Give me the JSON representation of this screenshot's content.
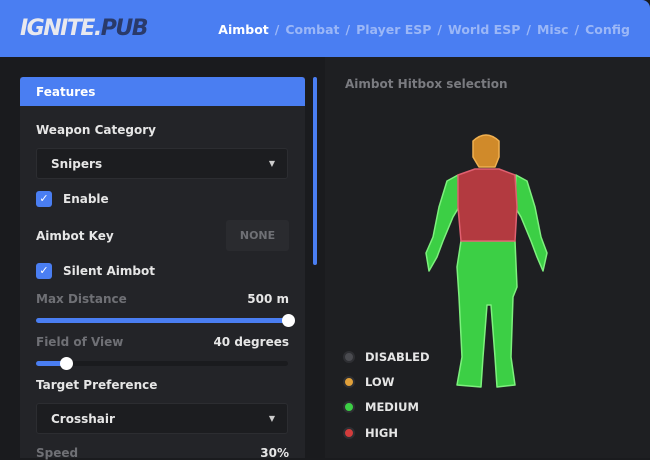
{
  "header": {
    "logo_main": "IGNITE.",
    "logo_accent": "PUB",
    "nav": [
      "Aimbot",
      "Combat",
      "Player ESP",
      "World ESP",
      "Misc",
      "Config"
    ],
    "active": "Aimbot",
    "separator": "/"
  },
  "features": {
    "title": "Features",
    "weapon_category_label": "Weapon Category",
    "weapon_category_value": "Snipers",
    "enable_label": "Enable",
    "enable_checked": true,
    "aimbot_key_label": "Aimbot Key",
    "aimbot_key_value": "NONE",
    "silent_label": "Silent Aimbot",
    "silent_checked": true,
    "max_distance_label": "Max Distance",
    "max_distance_value": "500 m",
    "max_distance_fraction": 1.0,
    "fov_label": "Field of View",
    "fov_value": "40 degrees",
    "fov_fraction": 0.12,
    "target_pref_label": "Target Preference",
    "target_pref_value": "Crosshair",
    "speed_label": "Speed",
    "speed_value": "30%"
  },
  "hitbox": {
    "title": "Aimbot Hitbox selection",
    "regions": {
      "head": "LOW",
      "torso": "HIGH",
      "arms": "MEDIUM",
      "legs": "MEDIUM"
    },
    "legend": [
      {
        "label": "DISABLED",
        "color": "#4a4b50"
      },
      {
        "label": "LOW",
        "color": "#e0a03a"
      },
      {
        "label": "MEDIUM",
        "color": "#3ccf45"
      },
      {
        "label": "HIGH",
        "color": "#d23c3c"
      }
    ]
  }
}
